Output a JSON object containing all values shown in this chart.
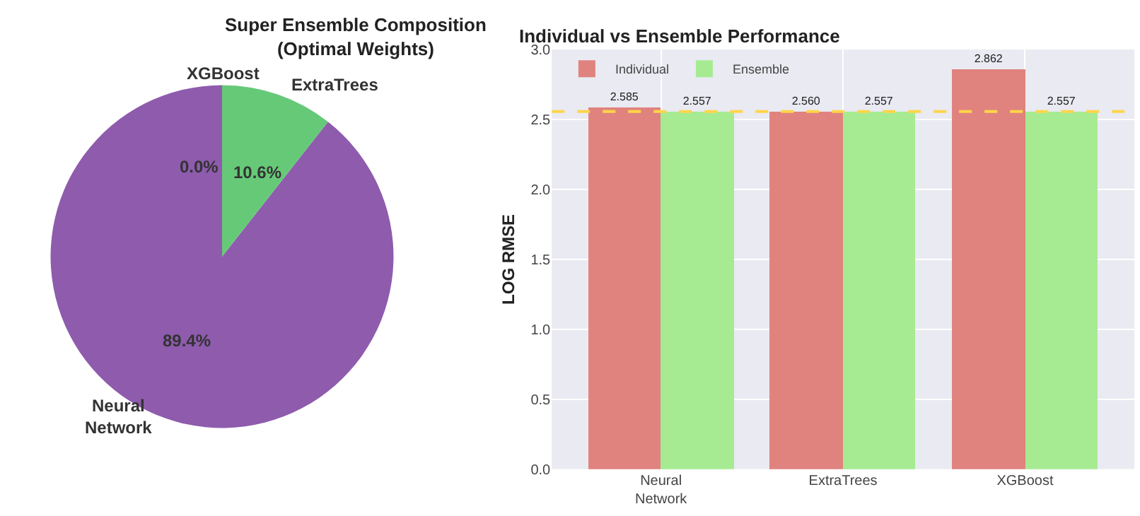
{
  "chart_data": [
    {
      "type": "pie",
      "title": "Super Ensemble Composition\n(Optimal Weights)",
      "categories": [
        "Neural\nNetwork",
        "ExtraTrees",
        "XGBoost"
      ],
      "values": [
        89.4,
        10.6,
        0.0
      ],
      "colors": [
        "#8e5bad",
        "#66c978",
        "#e8955a"
      ],
      "value_labels": [
        "89.4%",
        "10.6%",
        "0.0%"
      ]
    },
    {
      "type": "bar",
      "title": "Individual vs Ensemble Performance",
      "ylabel": "LOG RMSE",
      "categories": [
        "Neural\nNetwork",
        "ExtraTrees",
        "XGBoost"
      ],
      "series": [
        {
          "name": "Individual",
          "color": "#e0837e",
          "values": [
            2.585,
            2.56,
            2.862
          ],
          "value_labels": [
            "2.585",
            "2.560",
            "2.862"
          ]
        },
        {
          "name": "Ensemble",
          "color": "#a6eb92",
          "values": [
            2.557,
            2.557,
            2.557
          ],
          "value_labels": [
            "2.557",
            "2.557",
            "2.557"
          ]
        }
      ],
      "ylim": [
        0,
        3.0
      ],
      "yticks": [
        {
          "value": 0,
          "label": "0.0"
        },
        {
          "value": 0.5,
          "label": "0.5"
        },
        {
          "value": 1,
          "label": "1.0"
        },
        {
          "value": 1.5,
          "label": "1.5"
        },
        {
          "value": 2,
          "label": "2.0"
        },
        {
          "value": 2.5,
          "label": "2.5"
        },
        {
          "value": 3,
          "label": "3.0"
        }
      ],
      "ref_lines": [
        {
          "axis": "y",
          "value": 2.557,
          "color": "#ffd54a",
          "line_style": "dashed"
        }
      ],
      "grid": true,
      "legend": "top left"
    }
  ]
}
